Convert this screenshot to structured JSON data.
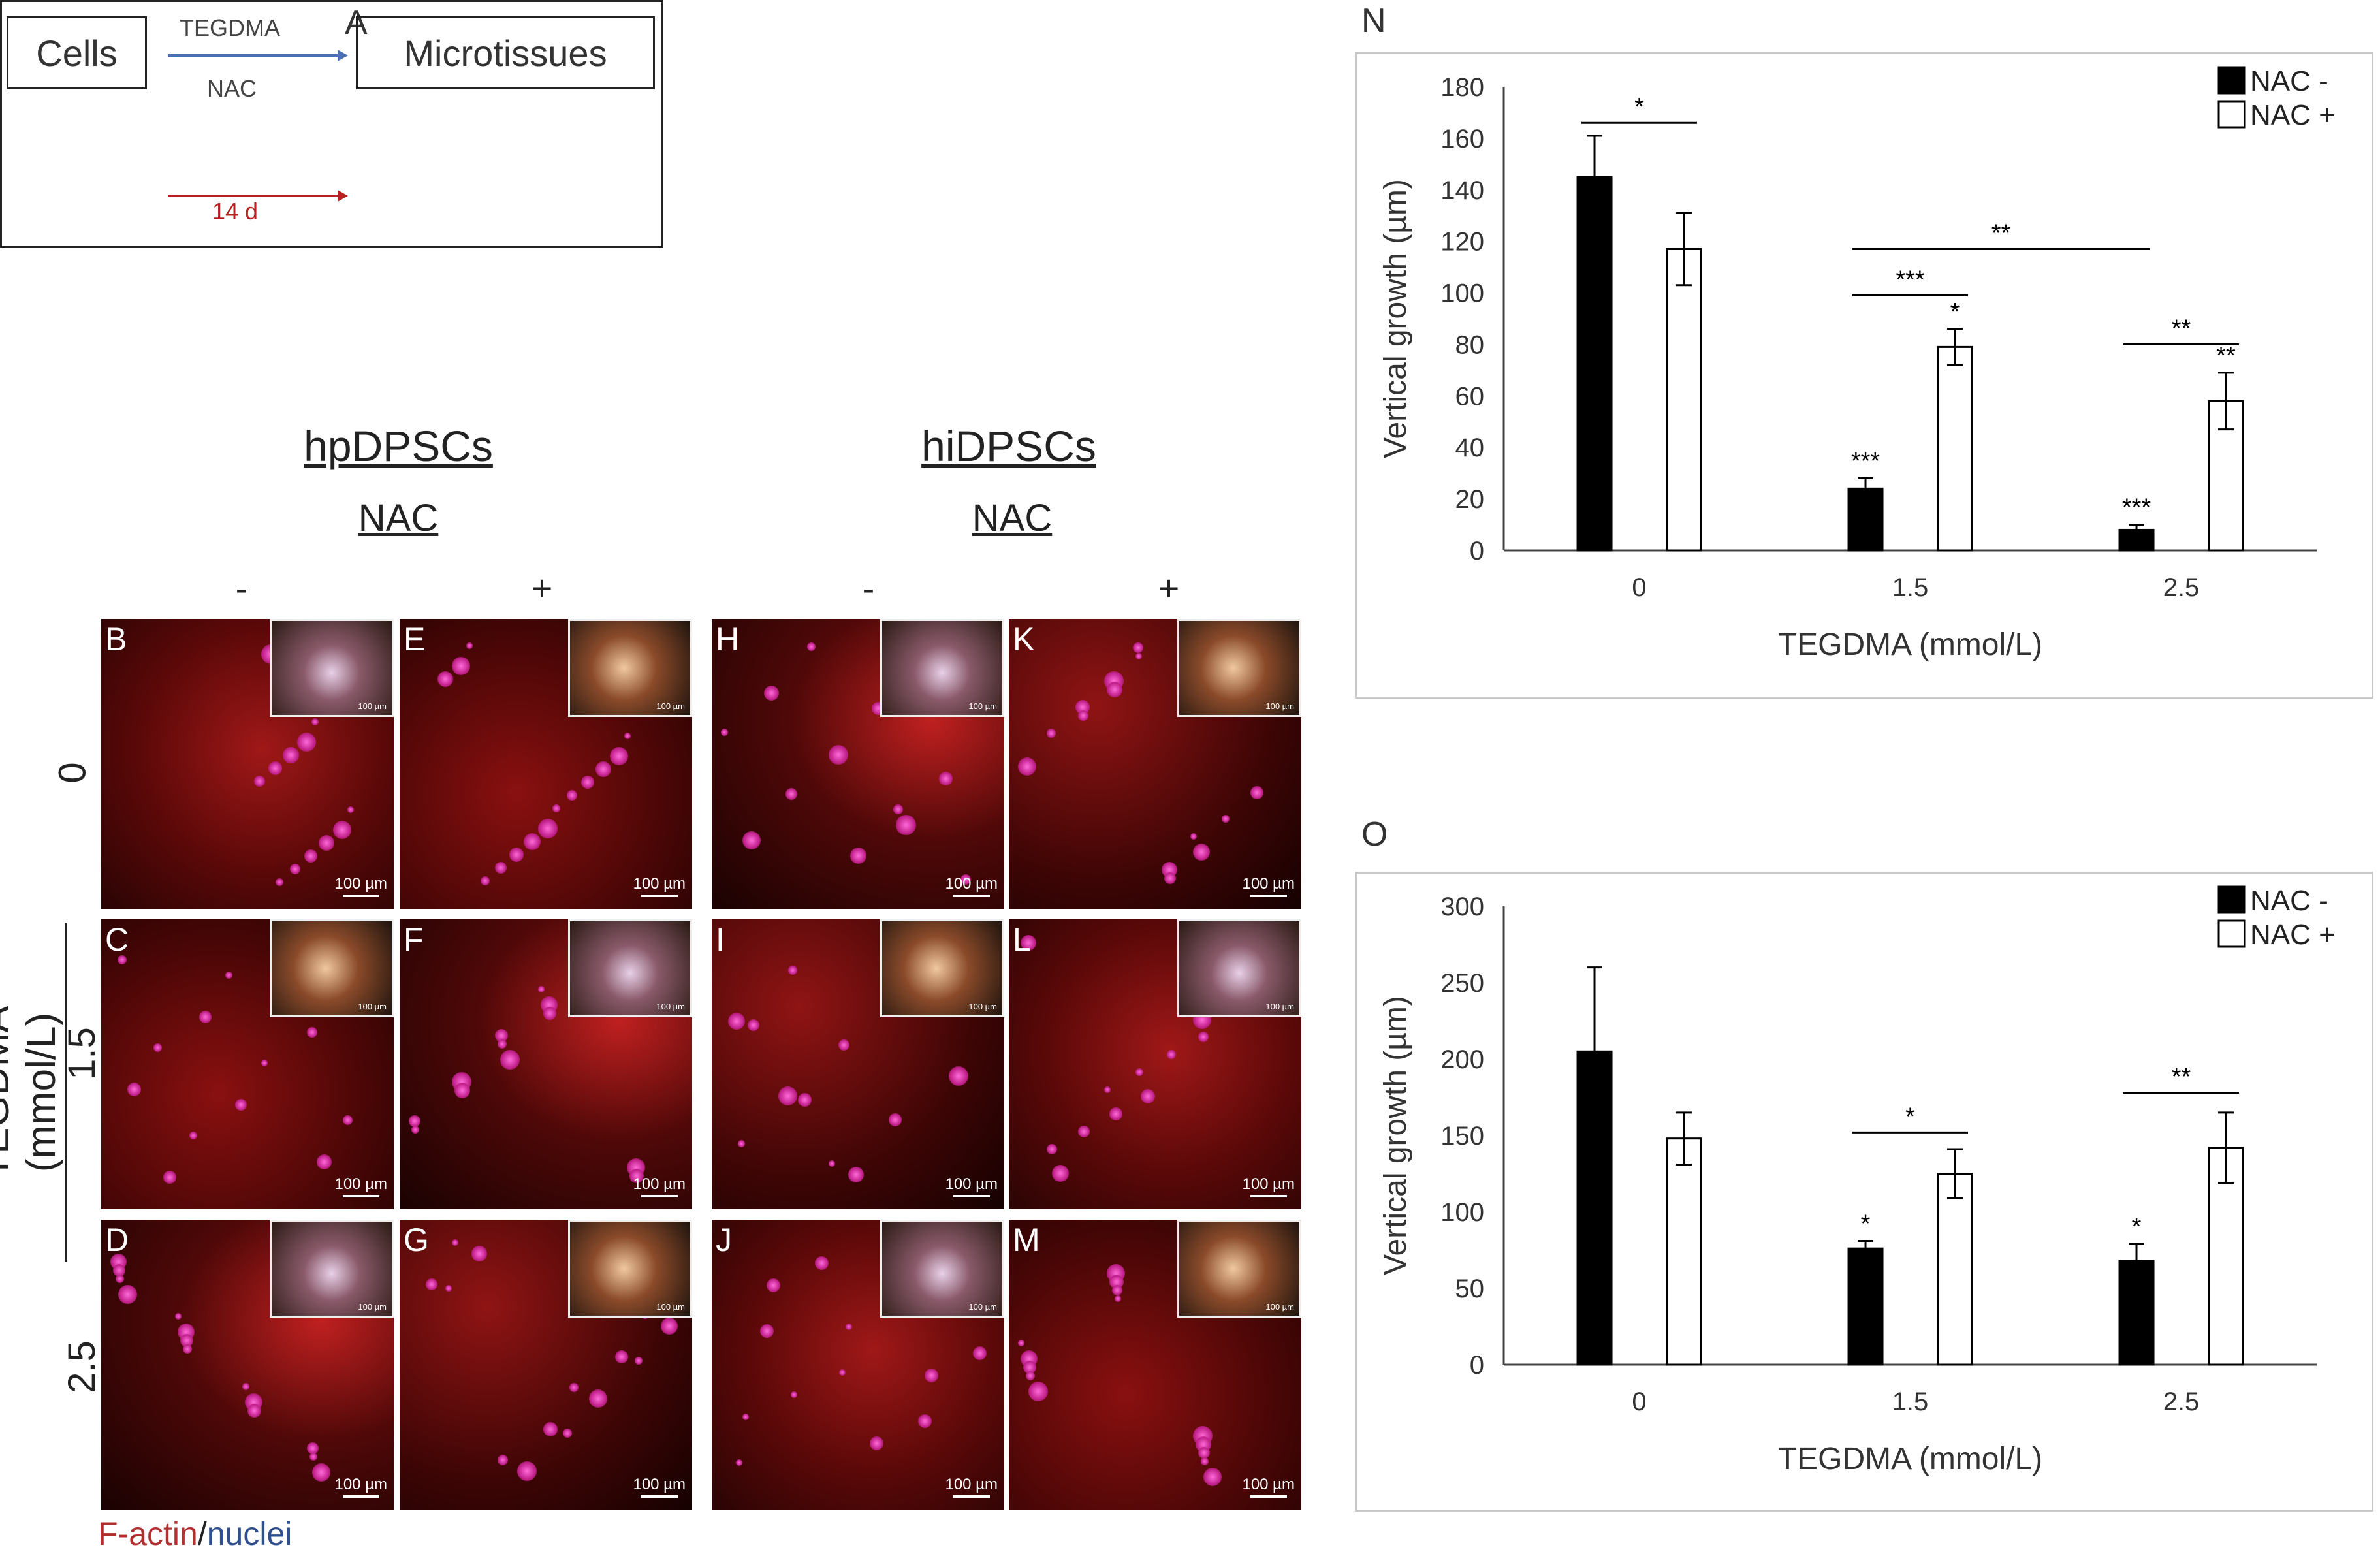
{
  "panel_a": {
    "letter": "A",
    "cells": "Cells",
    "microtissues": "Microtissues",
    "tegdma": "TEGDMA",
    "nac": "NAC",
    "duration": "14 d"
  },
  "groups": [
    {
      "title": "hpDPSCs",
      "nac": "NAC",
      "minus": "-",
      "plus": "+"
    },
    {
      "title": "hiDPSCs",
      "nac": "NAC",
      "minus": "-",
      "plus": "+"
    }
  ],
  "row_axis": {
    "label": "TEGDMA (mmol/L)",
    "rows": [
      "0",
      "1.5",
      "2.5"
    ]
  },
  "micrographs": [
    {
      "letter": "B",
      "scale": "100 µm",
      "inset_scale": "100 µm"
    },
    {
      "letter": "E",
      "scale": "100 µm",
      "inset_scale": "100 µm"
    },
    {
      "letter": "H",
      "scale": "100 µm",
      "inset_scale": "100 µm"
    },
    {
      "letter": "K",
      "scale": "100 µm",
      "inset_scale": "100 µm"
    },
    {
      "letter": "C",
      "scale": "100 µm",
      "inset_scale": "100 µm"
    },
    {
      "letter": "F",
      "scale": "100 µm",
      "inset_scale": "100 µm"
    },
    {
      "letter": "I",
      "scale": "100 µm",
      "inset_scale": "100 µm"
    },
    {
      "letter": "L",
      "scale": "100 µm",
      "inset_scale": "100 µm"
    },
    {
      "letter": "D",
      "scale": "100 µm",
      "inset_scale": "100 µm"
    },
    {
      "letter": "G",
      "scale": "100 µm",
      "inset_scale": "100 µm"
    },
    {
      "letter": "J",
      "scale": "100 µm",
      "inset_scale": "100 µm"
    },
    {
      "letter": "M",
      "scale": "100 µm",
      "inset_scale": "100 µm"
    }
  ],
  "stain_legend": {
    "factin": "F-actin",
    "sep": "/",
    "nuclei": "nuclei",
    "factin_color": "#b03030",
    "nuclei_color": "#2f4f8f"
  },
  "chart_data": [
    {
      "panel": "N",
      "type": "bar",
      "categories": [
        "0",
        "1.5",
        "2.5"
      ],
      "series": [
        {
          "name": "NAC -",
          "color": "#000000",
          "values": [
            145,
            24,
            8
          ],
          "errors": [
            16,
            4,
            2
          ],
          "marks": [
            "",
            "***",
            "***"
          ]
        },
        {
          "name": "NAC +",
          "color": "#ffffff",
          "values": [
            117,
            79,
            58
          ],
          "errors": [
            14,
            7,
            11
          ],
          "marks": [
            "",
            "*",
            "**"
          ]
        }
      ],
      "xlabel": "TEGDMA (mmol/L)",
      "ylabel": "Vertical growth (µm)",
      "ylim": [
        0,
        180
      ],
      "yticks": [
        0,
        20,
        40,
        60,
        80,
        100,
        120,
        140,
        160,
        180
      ],
      "brackets": [
        {
          "from": [
            0,
            0
          ],
          "to": [
            0,
            1
          ],
          "y": 166,
          "label": "*"
        },
        {
          "from": [
            1,
            0
          ],
          "to": [
            1,
            1
          ],
          "y": 99,
          "label": "***"
        },
        {
          "from": [
            1,
            0
          ],
          "to": [
            2,
            0
          ],
          "y": 117,
          "label": "**"
        },
        {
          "from": [
            2,
            0
          ],
          "to": [
            2,
            1
          ],
          "y": 80,
          "label": "**"
        }
      ],
      "legend": "top-right",
      "grid": false
    },
    {
      "panel": "O",
      "type": "bar",
      "categories": [
        "0",
        "1.5",
        "2.5"
      ],
      "series": [
        {
          "name": "NAC -",
          "color": "#000000",
          "values": [
            205,
            76,
            68
          ],
          "errors": [
            55,
            5,
            11
          ],
          "marks": [
            "",
            "*",
            "*"
          ]
        },
        {
          "name": "NAC +",
          "color": "#ffffff",
          "values": [
            148,
            125,
            142
          ],
          "errors": [
            17,
            16,
            23
          ],
          "marks": [
            "",
            "",
            ""
          ]
        }
      ],
      "xlabel": "TEGDMA (mmol/L)",
      "ylabel": "Vertical growth (µm)",
      "ylim": [
        0,
        300
      ],
      "yticks": [
        0,
        50,
        100,
        150,
        200,
        250,
        300
      ],
      "brackets": [
        {
          "from": [
            1,
            0
          ],
          "to": [
            1,
            1
          ],
          "y": 152,
          "label": "*"
        },
        {
          "from": [
            2,
            0
          ],
          "to": [
            2,
            1
          ],
          "y": 178,
          "label": "**"
        }
      ],
      "legend": "top-right",
      "grid": false
    }
  ]
}
